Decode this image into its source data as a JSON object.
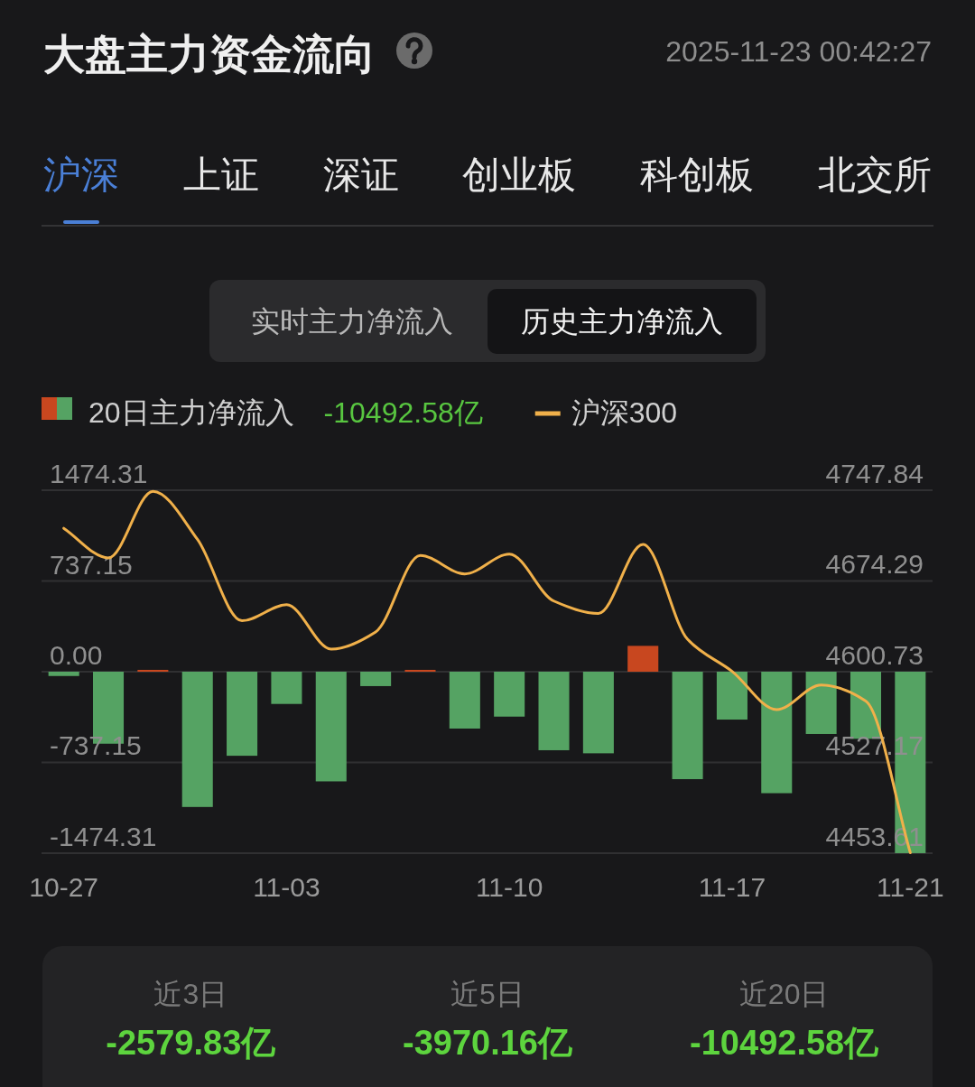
{
  "chart_data": {
    "type": "bar",
    "title": "大盘主力资金流向",
    "subtitle": "2025-11-23 00:42:27",
    "annotations": [
      "沪深",
      "上证",
      "深证",
      "创业板",
      "科创板",
      "北交所",
      "实时主力净流入",
      "历史主力净流入",
      "-10492.58亿",
      "近3日",
      "-2579.83亿",
      "近5日",
      "-3970.16亿",
      "近20日",
      "-10492.58亿"
    ],
    "categories": [
      "10-27",
      null,
      null,
      null,
      null,
      "11-03",
      null,
      null,
      null,
      null,
      "11-10",
      null,
      null,
      null,
      null,
      "11-17",
      null,
      null,
      null,
      "11-21"
    ],
    "series": [
      {
        "name": "20日主力净流入",
        "colors": [
          "#55a363",
          "#55a363",
          "#c8471f",
          "#55a363",
          "#55a363",
          "#55a363",
          "#55a363",
          "#55a363",
          "#c8471f",
          "#55a363",
          "#55a363",
          "#55a363",
          "#55a363",
          "#c8471f",
          "#55a363",
          "#55a363",
          "#55a363",
          "#55a363",
          "#55a363",
          "#55a363"
        ],
        "values": [
          -35,
          -585,
          15,
          -1099,
          -683,
          -262,
          -891,
          -117,
          15,
          -462,
          -365,
          -638,
          -663,
          210,
          -873,
          -389,
          -987,
          -506,
          -545,
          -1474
        ]
      },
      {
        "name": "沪深300",
        "type": "line",
        "axis": "y2",
        "color": "#f0b04a",
        "values": [
          4717,
          4693,
          4747,
          4708,
          4642,
          4655,
          4619,
          4633,
          4695,
          4680,
          4696,
          4658,
          4648,
          4704,
          4627,
          4601,
          4570,
          4590,
          4577,
          4454
        ]
      }
    ],
    "ylim": [
      -1474.31,
      1474.31
    ],
    "yticks": [
      -1474.31,
      -737.15,
      {
        "value": 0,
        "label": "0.00"
      },
      737.15,
      1474.31
    ],
    "y2lim": [
      4453.61,
      4747.84
    ],
    "y2ticks": [
      4453.61,
      4527.17,
      4600.73,
      4674.29,
      4747.84
    ],
    "grid": "y",
    "legend": "top"
  }
}
